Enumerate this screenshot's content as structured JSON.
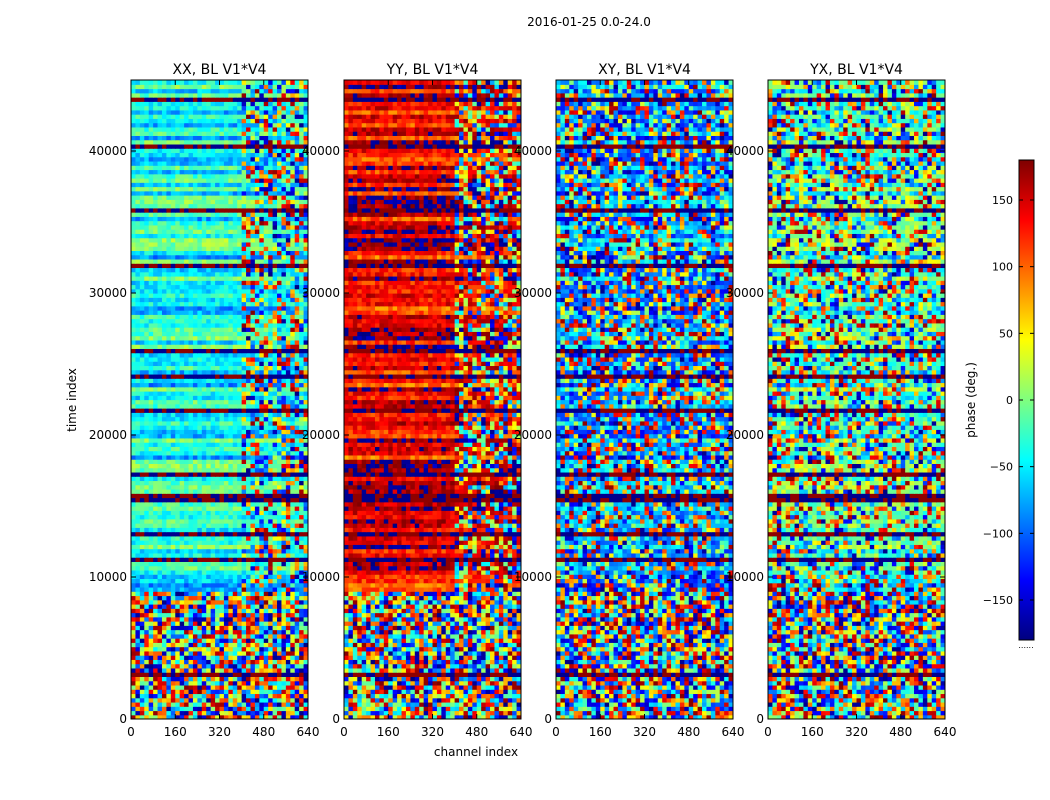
{
  "chart_data": {
    "type": "heatmap",
    "suptitle": "2016-01-25 0.0-24.0",
    "xlabel": "channel index",
    "ylabel": "time index",
    "xlim": [
      0,
      640
    ],
    "ylim": [
      0,
      45000
    ],
    "xticks": [
      0,
      160,
      320,
      480,
      640
    ],
    "yticks": [
      0,
      10000,
      20000,
      30000,
      40000
    ],
    "panels": [
      {
        "title": "XX, BL V1*V4",
        "base_phase": -40,
        "noise_start_channel": 400
      },
      {
        "title": "YY, BL V1*V4",
        "base_phase": 140,
        "noise_start_channel": 400
      },
      {
        "title": "XY, BL V1*V4",
        "base_phase": -90,
        "noise_start_channel": 0
      },
      {
        "title": "YX, BL V1*V4",
        "base_phase": -20,
        "noise_start_channel": 0
      }
    ],
    "colorbar": {
      "label": "phase (deg.)",
      "range": [
        -180,
        180
      ],
      "ticks": [
        -150,
        -100,
        -50,
        0,
        50,
        100,
        150
      ],
      "tick_labels": [
        "−150",
        "−100",
        "−50",
        "0",
        "50",
        "100",
        "150"
      ],
      "colormap": "jet"
    },
    "colorbar_footer": "......"
  }
}
